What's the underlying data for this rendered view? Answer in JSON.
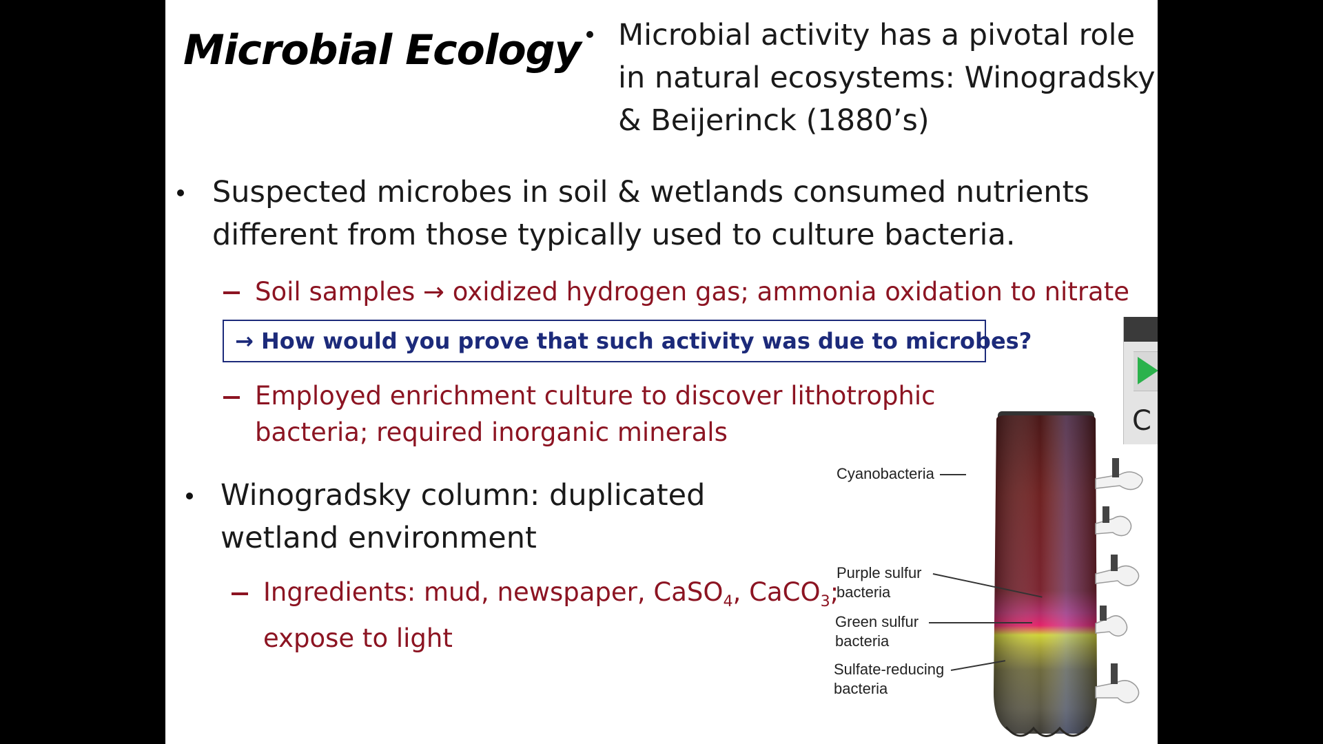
{
  "slide": {
    "title": "Microbial Ecology",
    "top_bullet": {
      "line1": "Microbial activity has a pivotal role",
      "line2": "in natural ecosystems: Winogradsky",
      "line3": "& Beijerinck (1880’s)"
    },
    "bullet1": {
      "line1": "Suspected microbes in soil & wetlands consumed nutrients",
      "line2": "different from those typically used to culture bacteria."
    },
    "sub1": {
      "pre": "Soil samples",
      "arrow": "→",
      "post": "oxidized hydrogen gas; ammonia oxidation to nitrate"
    },
    "question": {
      "arrow": "→",
      "text": "How would you prove that such activity was due to microbes?"
    },
    "sub2": {
      "line1": "Employed enrichment culture to discover lithotrophic",
      "line2": "bacteria; required inorganic minerals"
    },
    "bullet2": {
      "line1": "Winogradsky column:  duplicated",
      "line2": "wetland environment"
    },
    "sub3": {
      "pre": "Ingredients:  mud, newspaper, CaSO",
      "sub_a": "4",
      "mid": ", CaCO",
      "sub_b": "3",
      "end": ";",
      "line2": "expose to light"
    },
    "figure": {
      "labels": {
        "cyanobacteria": "Cyanobacteria",
        "purple_1": "Purple sulfur",
        "purple_2": "bacteria",
        "green_1": "Green sulfur",
        "green_2": "bacteria",
        "sulfate_1": "Sulfate-reducing",
        "sulfate_2": "bacteria"
      }
    }
  },
  "side_panel": {
    "letter": "C",
    "play_color": "#2bb24c"
  },
  "colors": {
    "accent_red": "#8c1422",
    "question_blue": "#1c2a7a"
  }
}
